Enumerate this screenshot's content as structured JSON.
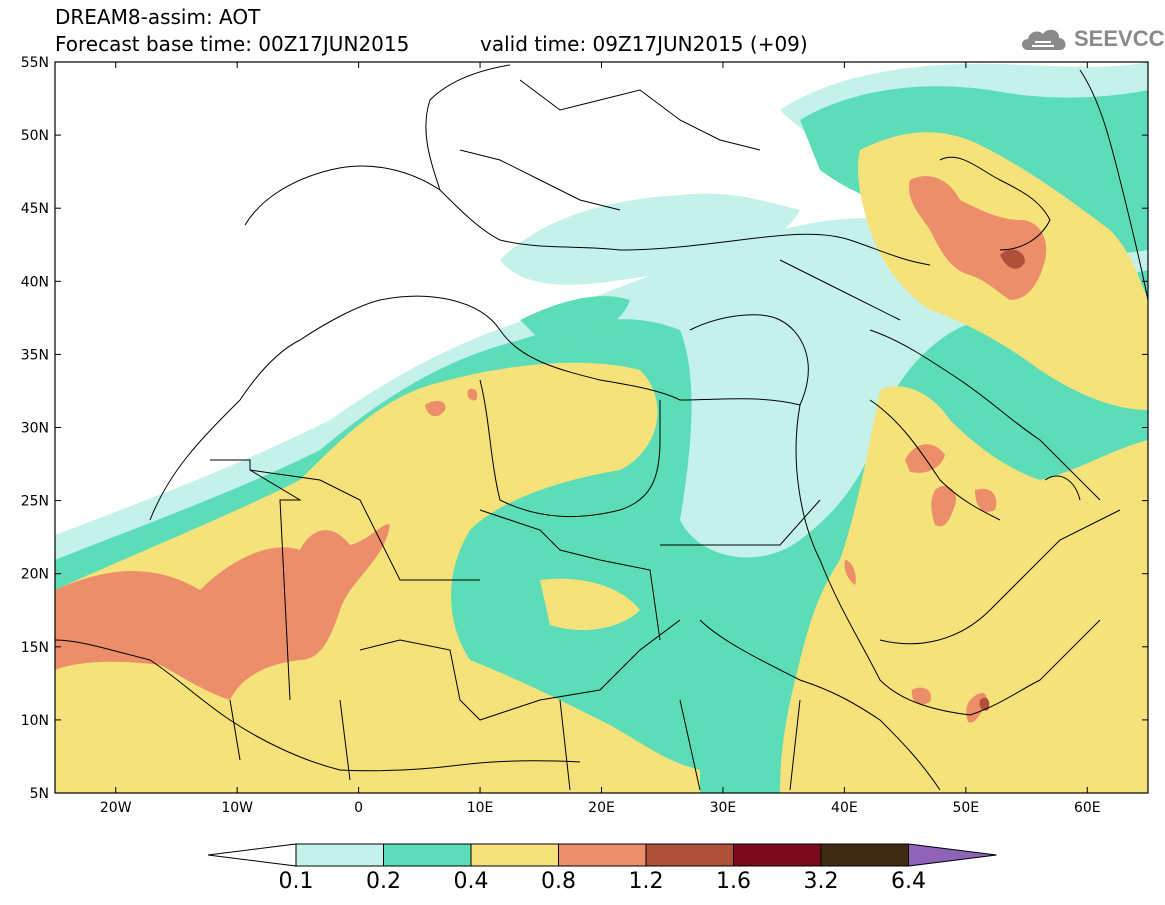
{
  "header": {
    "title": "DREAM8-assim: AOT",
    "base_time": "Forecast base time: 00Z17JUN2015",
    "valid_time": "valid time: 09Z17JUN2015 (+09)"
  },
  "logo": {
    "text": "SEEVCCC",
    "icon": "cloud-icon"
  },
  "map": {
    "lon_range": [
      -25,
      65
    ],
    "lat_range": [
      5,
      55
    ],
    "lat_labels": [
      "55N",
      "50N",
      "45N",
      "40N",
      "35N",
      "30N",
      "25N",
      "20N",
      "15N",
      "10N",
      "5N"
    ],
    "lon_labels": [
      "20W",
      "10W",
      "0",
      "10E",
      "20E",
      "30E",
      "40E",
      "50E",
      "60E"
    ]
  },
  "colorbar": {
    "labels": [
      "0.1",
      "0.2",
      "0.4",
      "0.8",
      "1.2",
      "1.6",
      "3.2",
      "6.4"
    ],
    "colors": [
      "#ffffff",
      "#c4f2ea",
      "#5cddb7",
      "#f5e27a",
      "#ec8e6a",
      "#b04f3a",
      "#7a0a1c",
      "#3e2a13",
      "#8f63b8"
    ]
  }
}
